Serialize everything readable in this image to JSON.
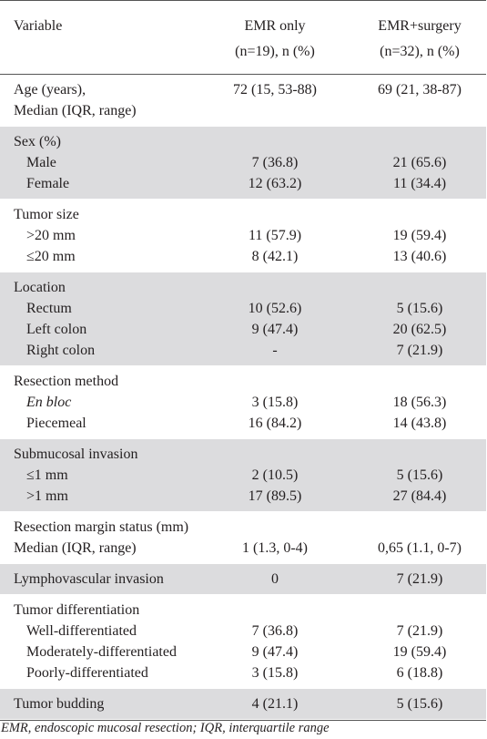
{
  "header": {
    "variable": "Variable",
    "col1_line1": "EMR only",
    "col1_line2": "(n=19), n (%)",
    "col2_line1": "EMR+surgery",
    "col2_line2": "(n=32), n (%)"
  },
  "sections": [
    {
      "shade": false,
      "rows": [
        {
          "label": "Age (years),",
          "c1": "72 (15, 53-88)",
          "c2": "69 (21, 38-87)"
        },
        {
          "label": "Median (IQR, range)",
          "c1": "",
          "c2": ""
        }
      ]
    },
    {
      "shade": true,
      "rows": [
        {
          "label": "Sex (%)",
          "c1": "",
          "c2": ""
        },
        {
          "label": "Male",
          "indent": true,
          "c1": "7 (36.8)",
          "c2": "21 (65.6)"
        },
        {
          "label": "Female",
          "indent": true,
          "c1": "12 (63.2)",
          "c2": "11 (34.4)"
        }
      ]
    },
    {
      "shade": false,
      "rows": [
        {
          "label": "Tumor size",
          "c1": "",
          "c2": ""
        },
        {
          "label": ">20 mm",
          "indent": true,
          "c1": "11 (57.9)",
          "c2": "19 (59.4)"
        },
        {
          "label": "≤20 mm",
          "indent": true,
          "c1": "8 (42.1)",
          "c2": "13 (40.6)"
        }
      ]
    },
    {
      "shade": true,
      "rows": [
        {
          "label": "Location",
          "c1": "",
          "c2": ""
        },
        {
          "label": "Rectum",
          "indent": true,
          "c1": "10 (52.6)",
          "c2": "5 (15.6)"
        },
        {
          "label": "Left colon",
          "indent": true,
          "c1": "9 (47.4)",
          "c2": "20 (62.5)"
        },
        {
          "label": "Right colon",
          "indent": true,
          "c1": "-",
          "c2": "7 (21.9)"
        }
      ]
    },
    {
      "shade": false,
      "rows": [
        {
          "label": "Resection method",
          "c1": "",
          "c2": ""
        },
        {
          "label": "En bloc",
          "indent": true,
          "italic": true,
          "c1": "3 (15.8)",
          "c2": "18 (56.3)"
        },
        {
          "label": "Piecemeal",
          "indent": true,
          "c1": "16 (84.2)",
          "c2": "14 (43.8)"
        }
      ]
    },
    {
      "shade": true,
      "rows": [
        {
          "label": "Submucosal invasion",
          "c1": "",
          "c2": ""
        },
        {
          "label": "≤1 mm",
          "indent": true,
          "c1": "2 (10.5)",
          "c2": "5 (15.6)"
        },
        {
          "label": ">1 mm",
          "indent": true,
          "c1": "17 (89.5)",
          "c2": "27 (84.4)"
        }
      ]
    },
    {
      "shade": false,
      "rows": [
        {
          "label": "Resection margin status (mm)",
          "c1": "",
          "c2": ""
        },
        {
          "label": "Median (IQR, range)",
          "c1": "1 (1.3, 0-4)",
          "c2": "0,65 (1.1, 0-7)"
        }
      ]
    },
    {
      "shade": true,
      "rows": [
        {
          "label": "Lymphovascular invasion",
          "c1": "0",
          "c2": "7 (21.9)"
        }
      ]
    },
    {
      "shade": false,
      "rows": [
        {
          "label": "Tumor differentiation",
          "c1": "",
          "c2": ""
        },
        {
          "label": "Well-differentiated",
          "indent": true,
          "c1": "7 (36.8)",
          "c2": "7 (21.9)"
        },
        {
          "label": "Moderately-differentiated",
          "indent": true,
          "c1": "9 (47.4)",
          "c2": "19 (59.4)"
        },
        {
          "label": "Poorly-differentiated",
          "indent": true,
          "c1": "3 (15.8)",
          "c2": "6 (18.8)"
        }
      ]
    },
    {
      "shade": true,
      "rows": [
        {
          "label": "Tumor budding",
          "c1": "4 (21.1)",
          "c2": "5 (15.6)"
        }
      ]
    }
  ],
  "footnote": "EMR, endoscopic mucosal resection; IQR, interquartile range"
}
